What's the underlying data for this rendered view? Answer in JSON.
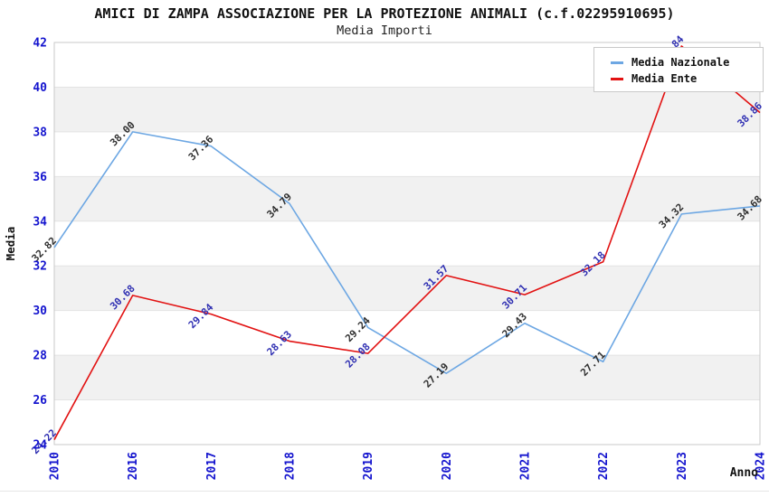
{
  "chart_data": {
    "type": "line",
    "title": "AMICI DI ZAMPA ASSOCIAZIONE PER LA PROTEZIONE ANIMALI (c.f.02295910695)",
    "subtitle": "Media Importi",
    "xlabel": "Anno",
    "ylabel": "Media",
    "categories": [
      "2010",
      "2016",
      "2017",
      "2018",
      "2019",
      "2020",
      "2021",
      "2022",
      "2023",
      "2024"
    ],
    "series": [
      {
        "name": "Media Nazionale",
        "color": "#6DA7E3",
        "label_color": "#2F2F2F",
        "values": [
          32.82,
          38.0,
          37.36,
          34.79,
          29.24,
          27.19,
          29.43,
          27.71,
          34.32,
          34.68
        ]
      },
      {
        "name": "Media Ente",
        "color": "#E21212",
        "label_color": "#2F2FB2",
        "values": [
          24.22,
          30.68,
          29.84,
          28.63,
          28.08,
          31.57,
          30.71,
          32.18,
          41.84,
          38.86
        ]
      }
    ],
    "ylim": [
      24,
      42
    ],
    "yticks": [
      24,
      26,
      28,
      30,
      32,
      34,
      36,
      38,
      40,
      42
    ],
    "grid": true,
    "legend_position": "top-right",
    "colors": {
      "band": "#F1F1F1",
      "gridline": "#E3E3E3",
      "border": "#C9C9C9",
      "tick": "#1414CE",
      "axis_label": "#111111"
    }
  }
}
